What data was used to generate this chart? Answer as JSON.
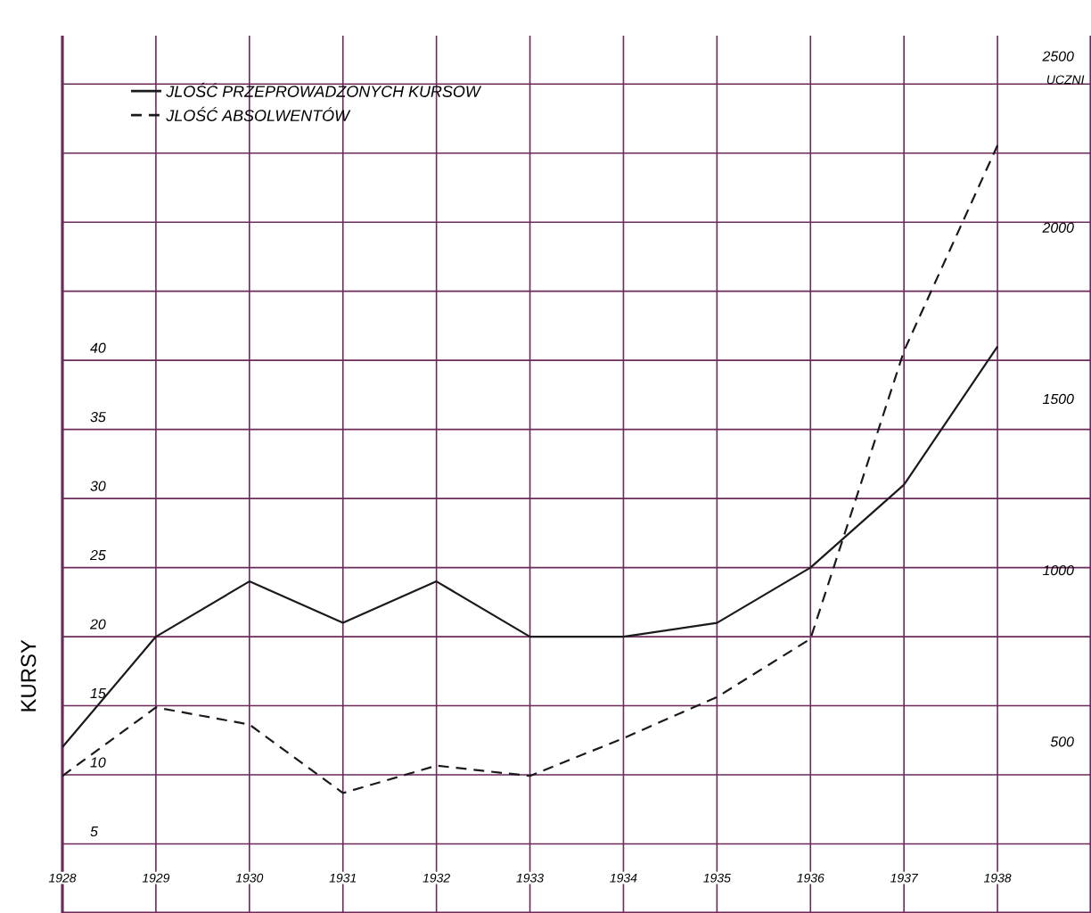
{
  "chart_data": {
    "type": "line",
    "ylabel": "KURSY",
    "y2label": "UCZNI",
    "x": [
      1928,
      1929,
      1930,
      1931,
      1932,
      1933,
      1934,
      1935,
      1936,
      1937,
      1938
    ],
    "xlim": [
      1928,
      1939
    ],
    "xticks": [
      1928,
      1929,
      1930,
      1931,
      1932,
      1933,
      1934,
      1935,
      1936,
      1937,
      1938
    ],
    "ylim": [
      0,
      63.5
    ],
    "yticks": [
      5,
      10,
      15,
      20,
      25,
      30,
      35,
      40,
      {
        "value": 45,
        "label": null
      },
      {
        "value": 50,
        "label": null
      },
      {
        "value": 55,
        "label": null
      },
      {
        "value": 60,
        "label": null
      }
    ],
    "y2lim": [
      0,
      2560
    ],
    "y2ticks": [
      500,
      1000,
      1500,
      2000,
      2500
    ],
    "grid": true,
    "legend": "top left",
    "series": [
      {
        "name": "JLOŚĆ PRZEPROWADZONYCH KURSOW",
        "color": "#1a1a1a",
        "line_style": "solid",
        "values": [
          12,
          20,
          24,
          21,
          24,
          20,
          20,
          21,
          25,
          31,
          41
        ]
      },
      {
        "name": "JLOŚĆ ABSOLWENTÓW",
        "color": "#1a1a1a",
        "line_style": "dashed",
        "axis": "y2",
        "values": [
          400,
          600,
          550,
          350,
          430,
          400,
          510,
          630,
          800,
          1640,
          2240
        ]
      }
    ]
  }
}
